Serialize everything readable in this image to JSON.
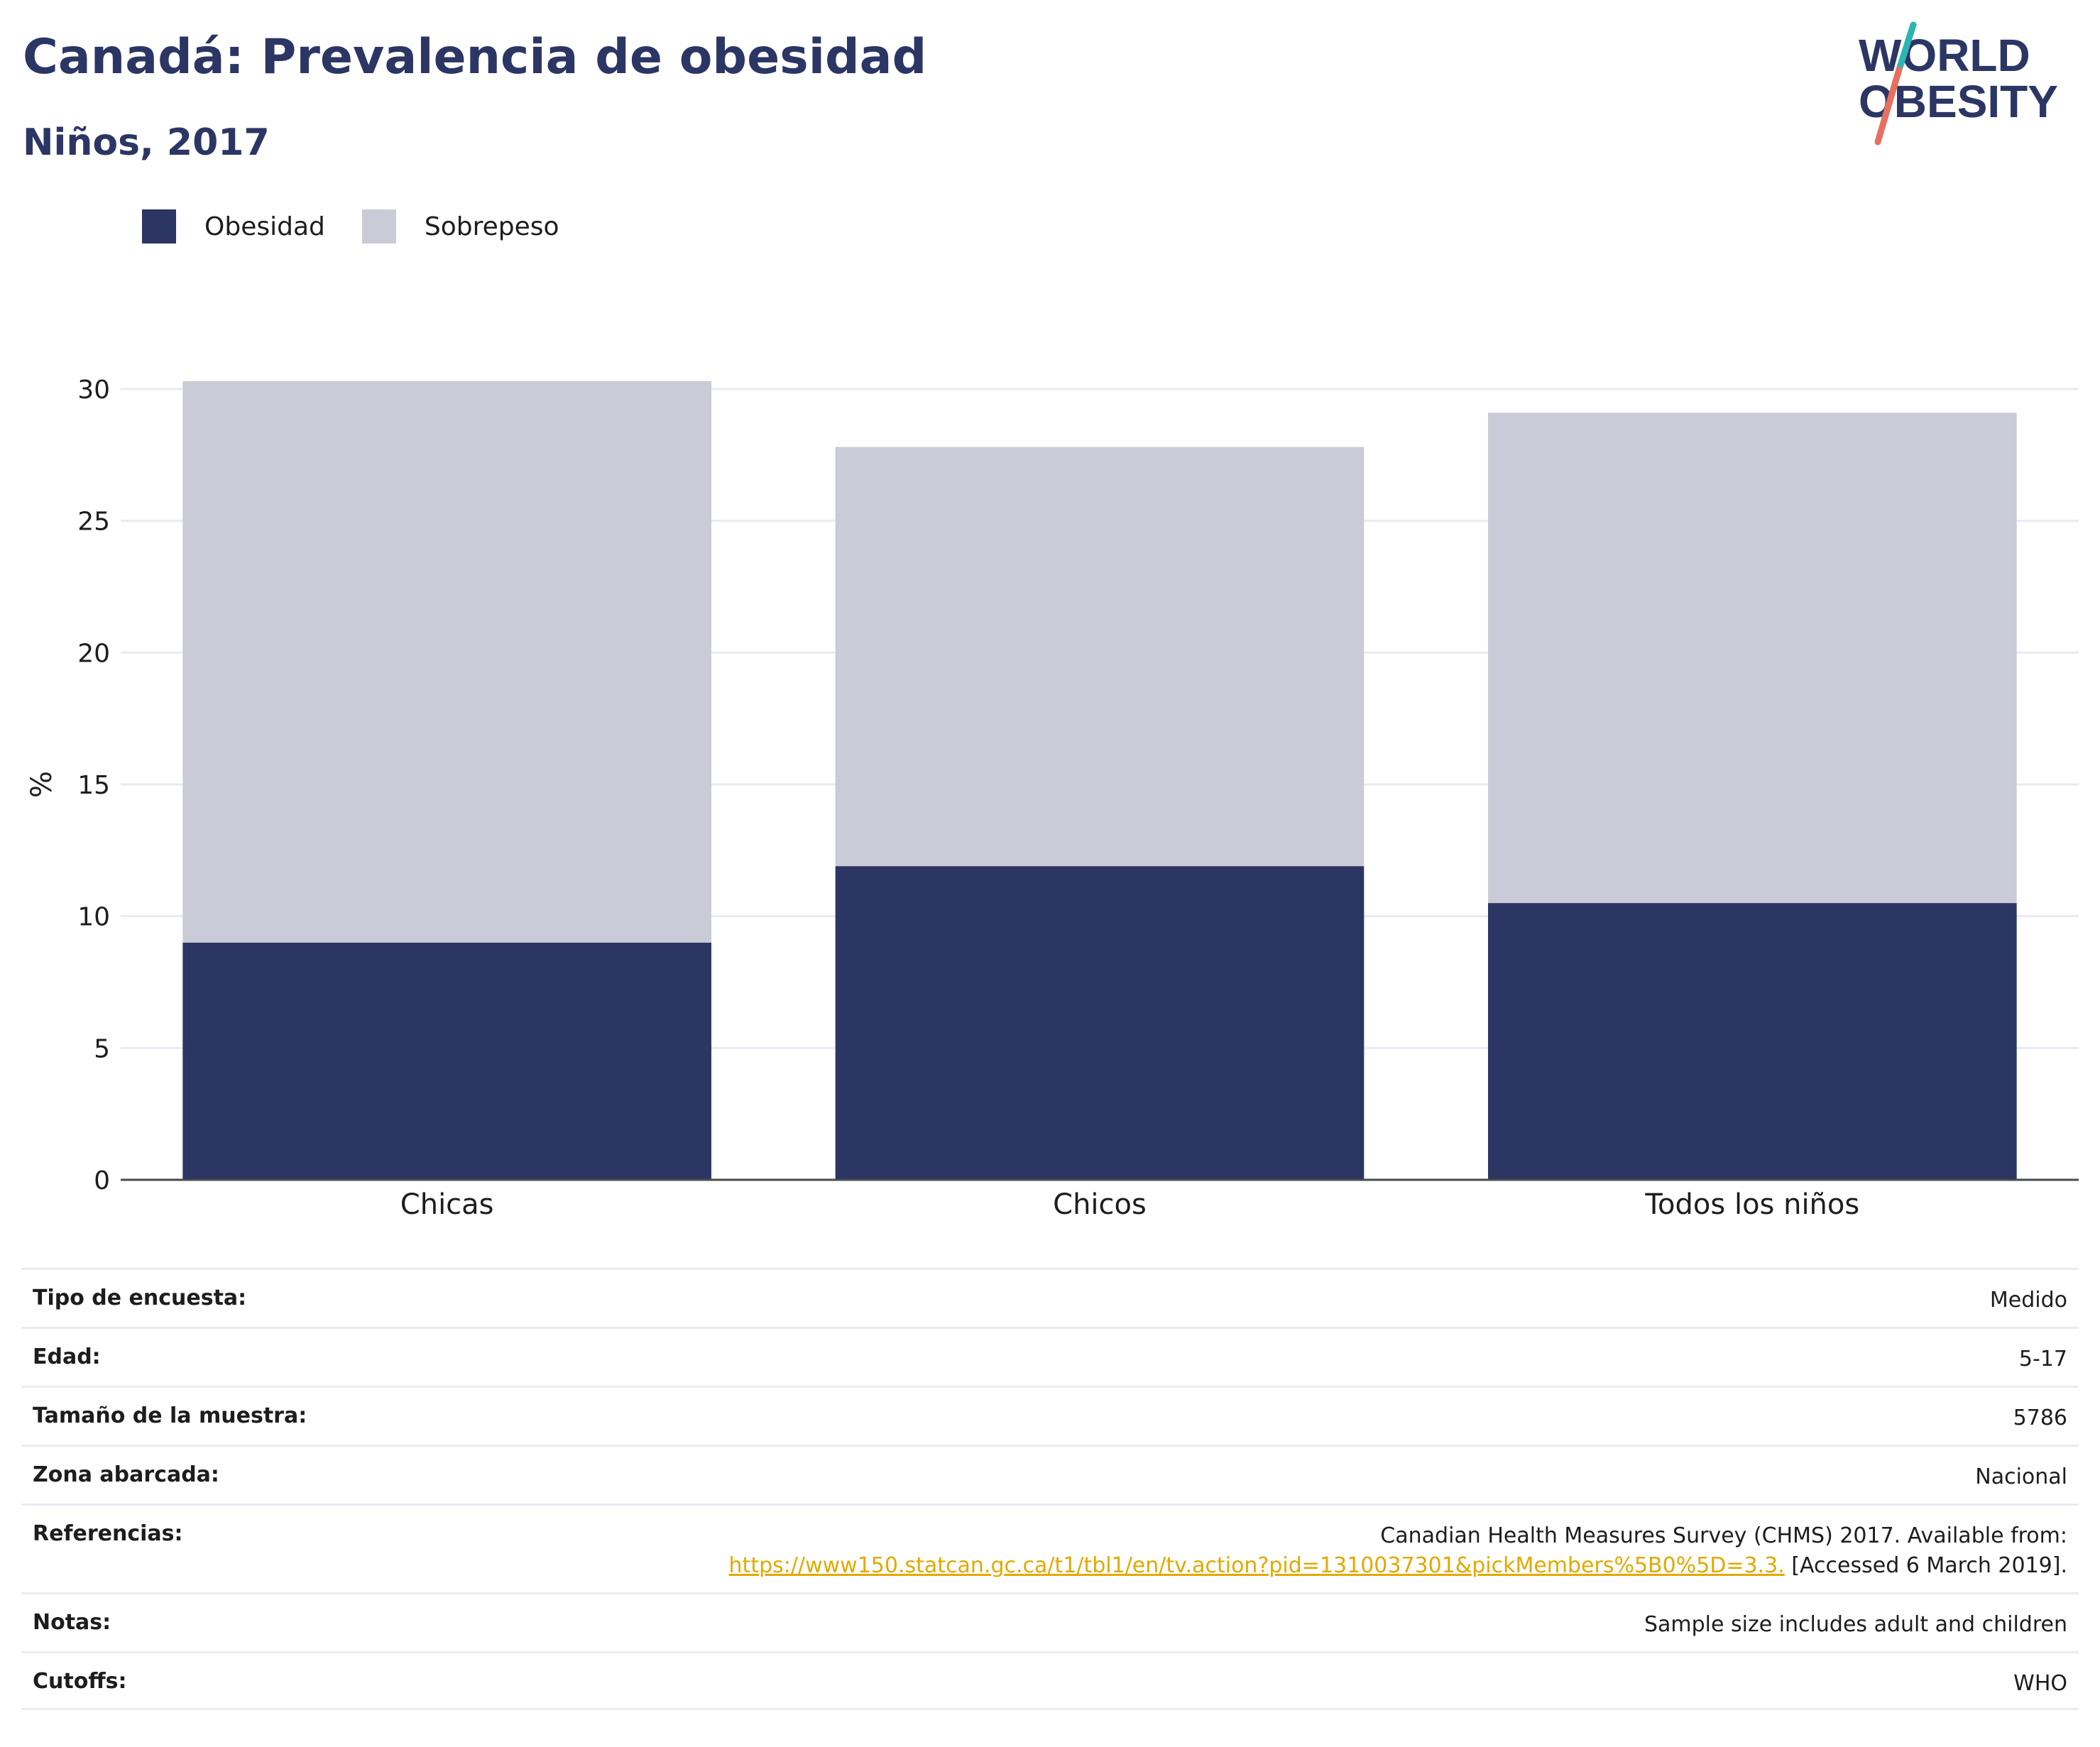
{
  "header": {
    "title": "Canadá: Prevalencia de obesidad",
    "subtitle": "Niños, 2017"
  },
  "logo": {
    "line1": "WORLD",
    "line2": "OBESITY",
    "colors": {
      "text": "#2b3664",
      "slash_top": "#2bb5b2",
      "slash_bottom": "#e8705f"
    }
  },
  "legend": {
    "items": [
      {
        "label": "Obesidad",
        "color": "#2b3664"
      },
      {
        "label": "Sobrepeso",
        "color": "#cacbd6"
      }
    ]
  },
  "chart_data": {
    "type": "bar",
    "stacked": true,
    "categories": [
      "Chicas",
      "Chicos",
      "Todos los niños"
    ],
    "series": [
      {
        "name": "Obesidad",
        "values": [
          9.0,
          11.9,
          10.5
        ],
        "color": "#2b3664"
      },
      {
        "name": "Sobrepeso",
        "values": [
          21.3,
          15.9,
          18.6
        ],
        "color": "#cacbd6"
      }
    ],
    "ylabel": "%",
    "ylim": [
      0,
      30
    ],
    "yticks": [
      0,
      5,
      10,
      15,
      20,
      25,
      30
    ],
    "grid": true,
    "legend_position": "top-left"
  },
  "meta": {
    "rows": [
      {
        "key": "Tipo de encuesta:",
        "value": "Medido"
      },
      {
        "key": "Edad:",
        "value": "5-17"
      },
      {
        "key": "Tamaño de la muestra:",
        "value": "5786"
      },
      {
        "key": "Zona abarcada:",
        "value": "Nacional"
      },
      {
        "key": "Notas:",
        "value": "Sample size includes adult and children"
      },
      {
        "key": "Cutoffs:",
        "value": "WHO"
      }
    ],
    "references": {
      "key": "Referencias:",
      "text1": "Canadian Health Measures Survey (CHMS) 2017. Available from:",
      "link": "https://www150.statcan.gc.ca/t1/tbl1/en/tv.action?pid=1310037301&pickMembers%5B0%5D=3.3.",
      "text2": " [Accessed 6 March 2019]."
    }
  }
}
